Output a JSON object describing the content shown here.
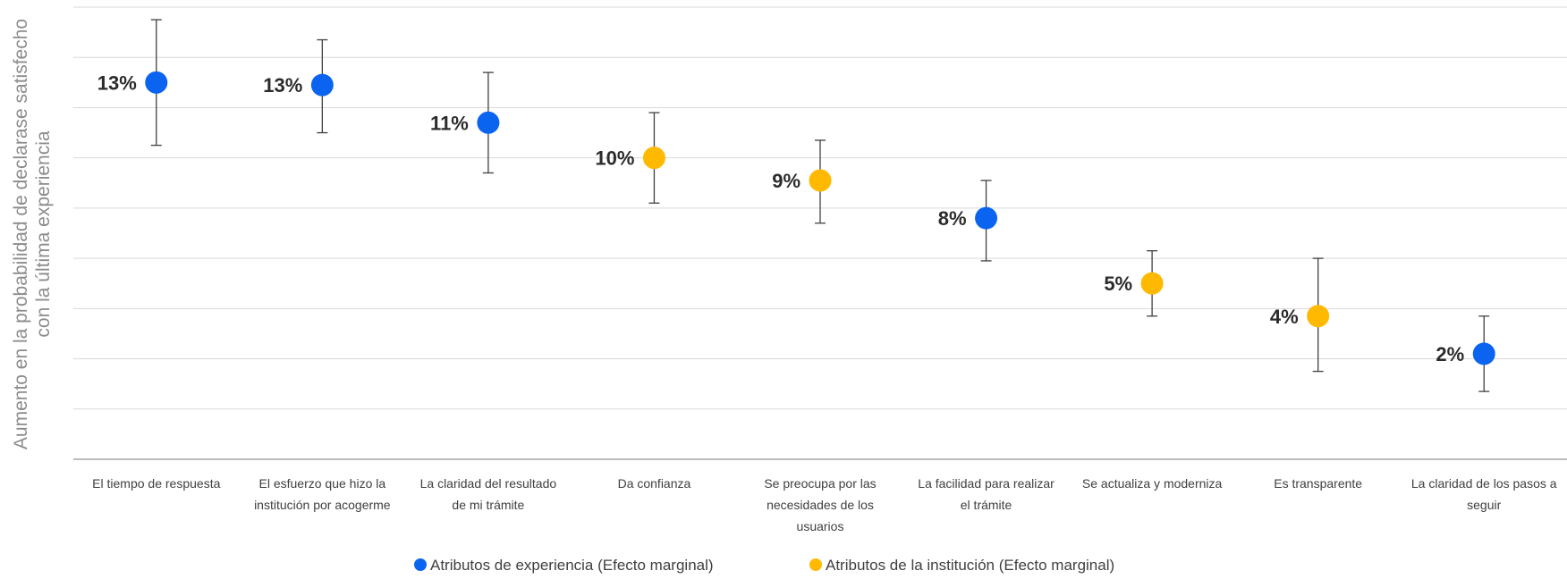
{
  "chart_data": {
    "type": "scatter",
    "ylabel": "Aumento en la probabilidad de declarase satisfecho con la última experiencia",
    "ylabel_lines": [
      "Aumento en la probabilidad de declarase satisfecho",
      "con la última experiencia"
    ],
    "ylim": [
      -0.02,
      0.16
    ],
    "grid": true,
    "legend_position": "bottom",
    "colors": {
      "experiencia": "#0a64f0",
      "institucion": "#ffb900",
      "grid": "#d9d9d9",
      "axis": "#a6a6a6",
      "errorbar": "#404040"
    },
    "series": [
      {
        "name": "Atributos de experiencia (Efecto marginal)",
        "key": "experiencia"
      },
      {
        "name": "Atributos de la institución (Efecto marginal)",
        "key": "institucion"
      }
    ],
    "points": [
      {
        "category": [
          "El tiempo de respuesta"
        ],
        "value": 0.13,
        "label": "13%",
        "low": 0.105,
        "high": 0.155,
        "series": "experiencia"
      },
      {
        "category": [
          "El esfuerzo que hizo la",
          "institución por acogerme"
        ],
        "value": 0.129,
        "label": "13%",
        "low": 0.11,
        "high": 0.147,
        "series": "experiencia"
      },
      {
        "category": [
          "La claridad del resultado",
          "de mi trámite"
        ],
        "value": 0.114,
        "label": "11%",
        "low": 0.094,
        "high": 0.134,
        "series": "experiencia"
      },
      {
        "category": [
          "Da confianza"
        ],
        "value": 0.1,
        "label": "10%",
        "low": 0.082,
        "high": 0.118,
        "series": "institucion"
      },
      {
        "category": [
          "Se preocupa por las",
          "necesidades de los",
          "usuarios"
        ],
        "value": 0.091,
        "label": "9%",
        "low": 0.074,
        "high": 0.107,
        "series": "institucion"
      },
      {
        "category": [
          "La facilidad para realizar",
          "el trámite"
        ],
        "value": 0.076,
        "label": "8%",
        "low": 0.059,
        "high": 0.091,
        "series": "experiencia"
      },
      {
        "category": [
          "Se actualiza y moderniza"
        ],
        "value": 0.05,
        "label": "5%",
        "low": 0.037,
        "high": 0.063,
        "series": "institucion"
      },
      {
        "category": [
          "Es transparente"
        ],
        "value": 0.037,
        "label": "4%",
        "low": 0.015,
        "high": 0.06,
        "series": "institucion"
      },
      {
        "category": [
          "La claridad de los pasos a",
          "seguir"
        ],
        "value": 0.022,
        "label": "2%",
        "low": 0.007,
        "high": 0.037,
        "series": "experiencia"
      }
    ]
  }
}
